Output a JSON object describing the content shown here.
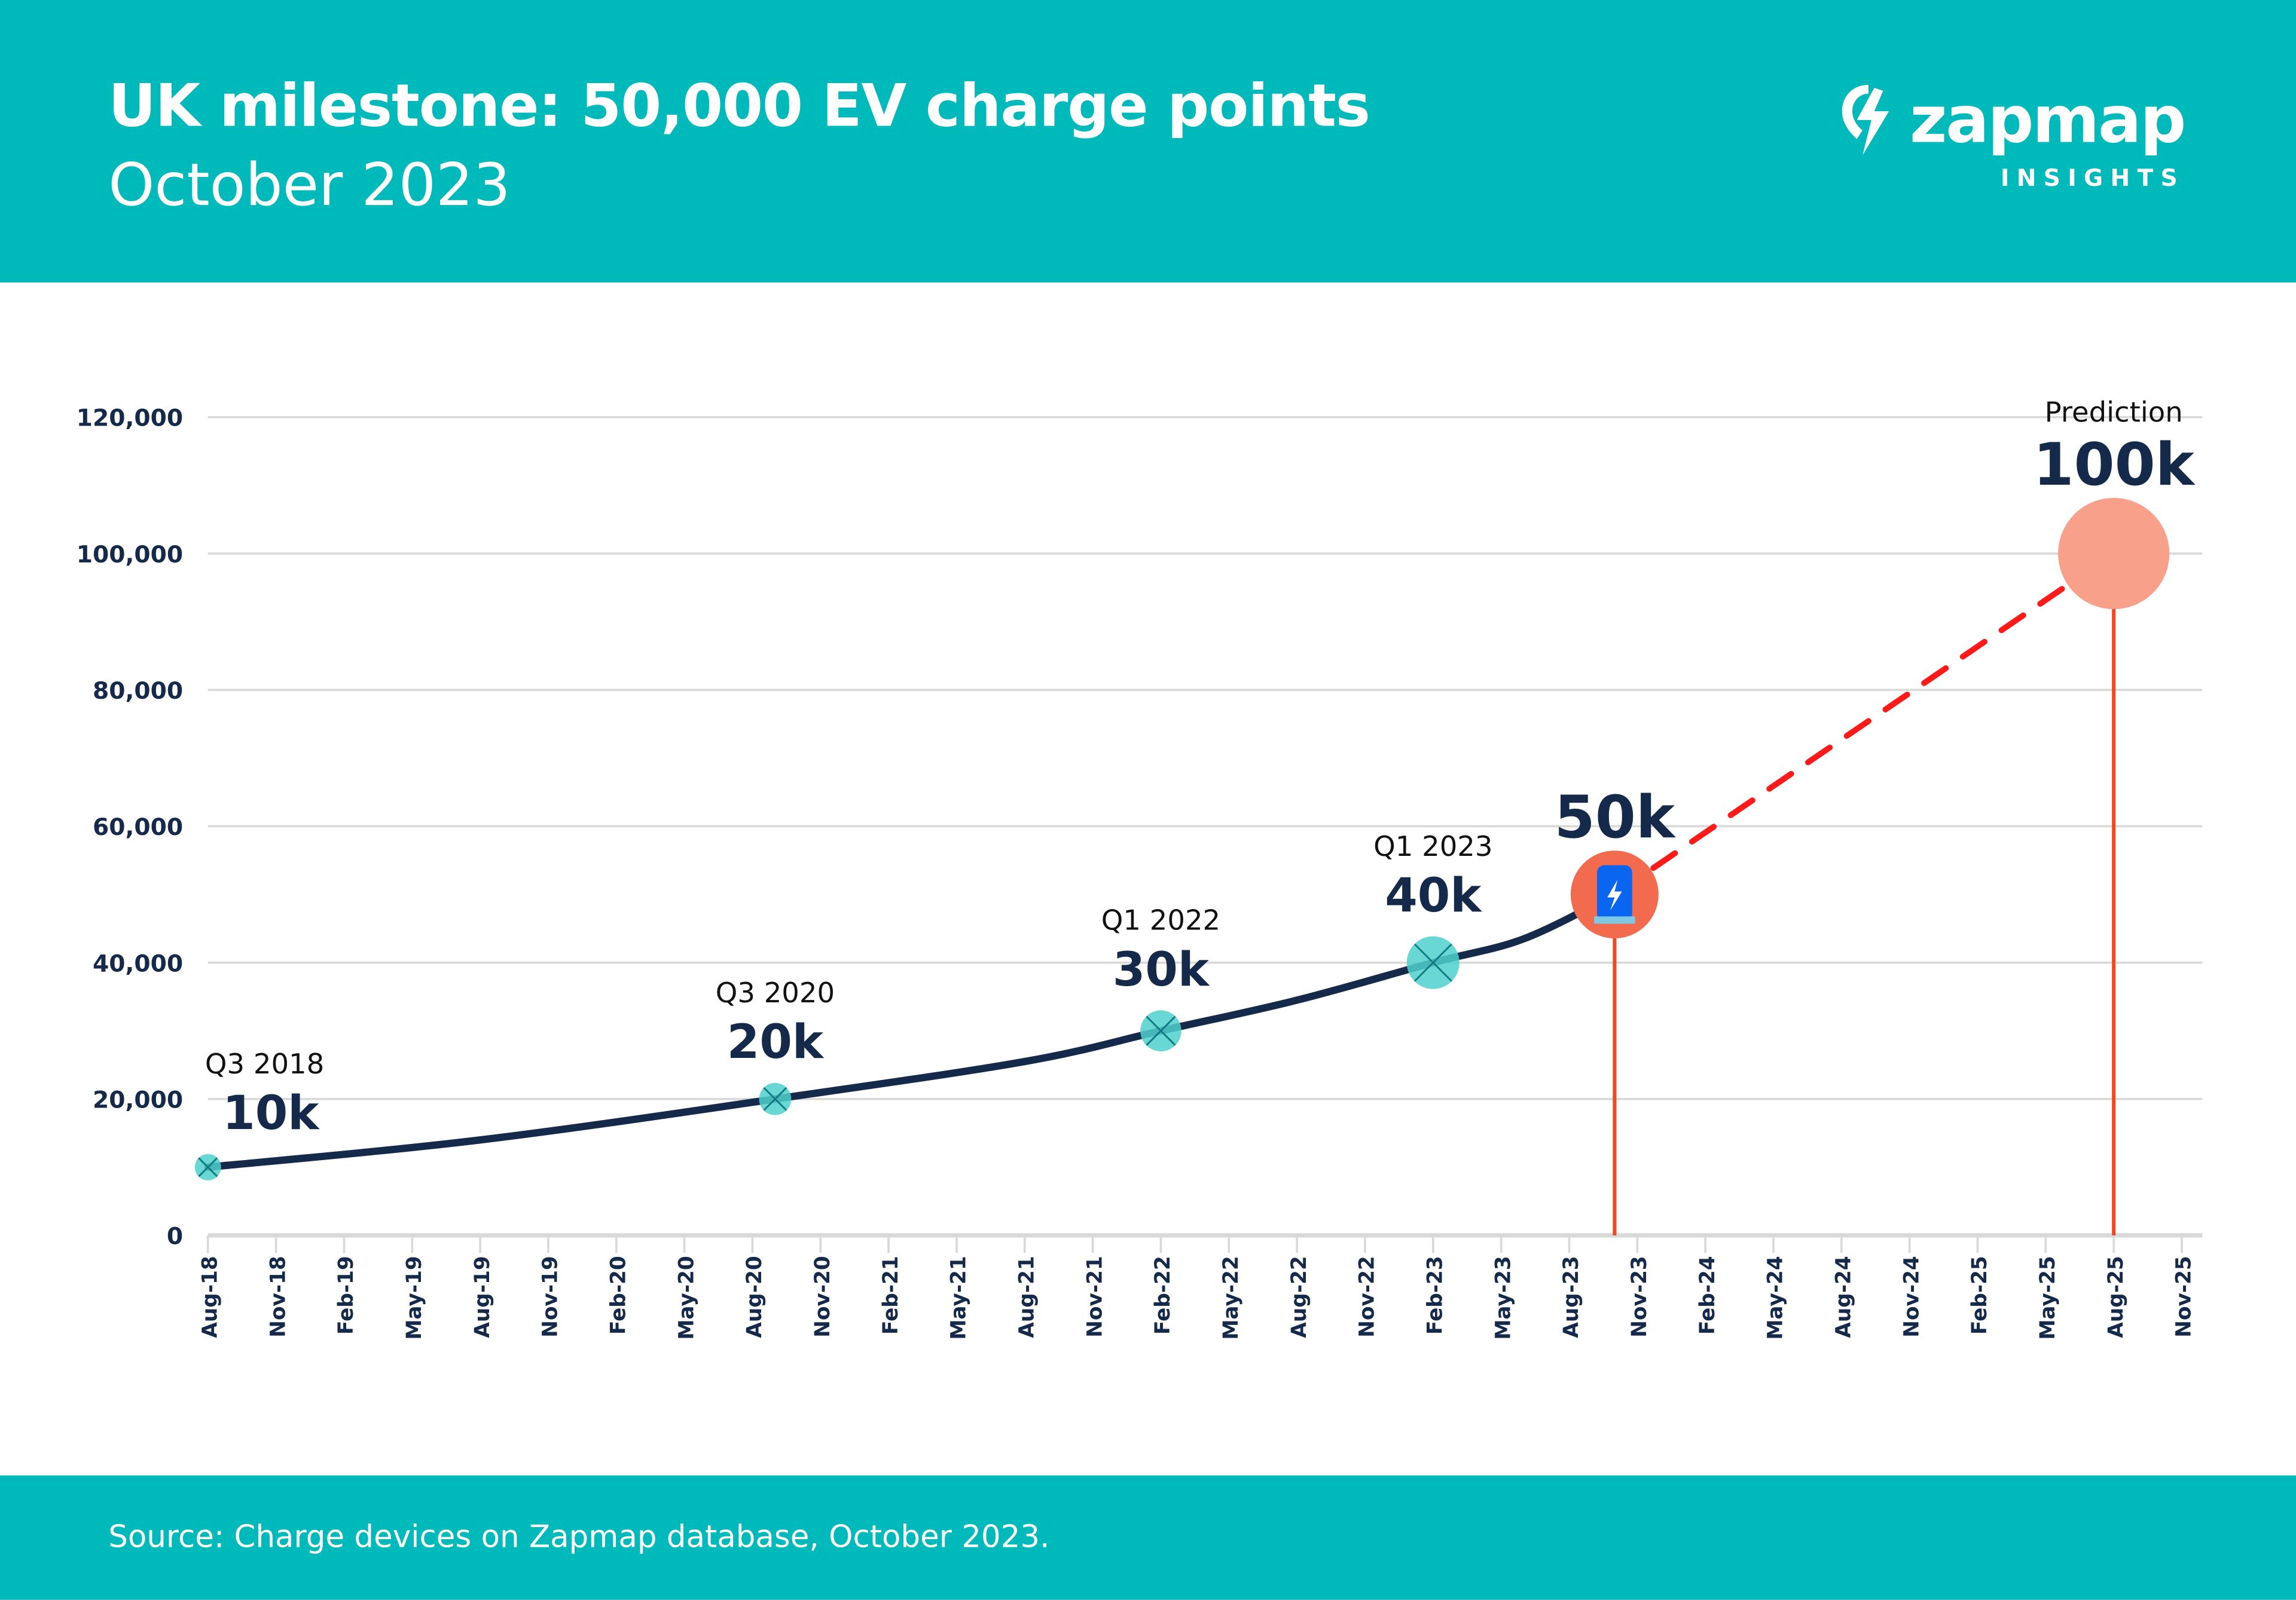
{
  "header": {
    "title": "UK milestone: 50,000 EV charge points",
    "subtitle": "October 2023",
    "logo_text": "zapmap",
    "logo_subtext": "INSIGHTS"
  },
  "footer": {
    "source": "Source: Charge devices on Zapmap database, October 2023."
  },
  "colors": {
    "header_bg": "#00b9bb",
    "line": "#15294b",
    "milestone": "#4fd1cd",
    "current": "#f26b4e",
    "prediction": "#f9a08a",
    "dashed": "#ff1a1a",
    "drop_line": "#f04a24",
    "charger_icon": "#0a66f0"
  },
  "chart_data": {
    "type": "line",
    "ylim": [
      0,
      120000
    ],
    "yticks": [
      0,
      20000,
      40000,
      60000,
      80000,
      100000,
      120000
    ],
    "ytick_labels": [
      "0",
      "20,000",
      "40,000",
      "60,000",
      "80,000",
      "100,000",
      "120,000"
    ],
    "xlim": [
      "2018-08",
      "2025-11"
    ],
    "xtick_labels": [
      "Aug-18",
      "Nov-18",
      "Feb-19",
      "May-19",
      "Aug-19",
      "Nov-19",
      "Feb-20",
      "May-20",
      "Aug-20",
      "Nov-20",
      "Feb-21",
      "May-21",
      "Aug-21",
      "Nov-21",
      "Feb-22",
      "May-22",
      "Aug-22",
      "Nov-22",
      "Feb-23",
      "May-23",
      "Aug-23",
      "Nov-23",
      "Feb-24",
      "May-24",
      "Aug-24",
      "Nov-24",
      "Feb-25",
      "May-25",
      "Aug-25",
      "Nov-25"
    ],
    "grid": true,
    "actual": [
      {
        "x": "2018-08",
        "y": 10000
      },
      {
        "x": "2019-08",
        "y": 14000
      },
      {
        "x": "2020-09",
        "y": 20000
      },
      {
        "x": "2021-08",
        "y": 25500
      },
      {
        "x": "2022-02",
        "y": 30000
      },
      {
        "x": "2022-08",
        "y": 34500
      },
      {
        "x": "2023-02",
        "y": 40000
      },
      {
        "x": "2023-06",
        "y": 43500
      },
      {
        "x": "2023-10",
        "y": 50000
      }
    ],
    "prediction_line": [
      {
        "x": "2023-10",
        "y": 50000
      },
      {
        "x": "2025-08",
        "y": 100000
      }
    ],
    "milestones": [
      {
        "x": "2018-08",
        "y": 10000,
        "period": "Q3 2018",
        "label": "10k",
        "kind": "milestone"
      },
      {
        "x": "2020-09",
        "y": 20000,
        "period": "Q3 2020",
        "label": "20k",
        "kind": "milestone"
      },
      {
        "x": "2022-02",
        "y": 30000,
        "period": "Q1 2022",
        "label": "30k",
        "kind": "milestone"
      },
      {
        "x": "2023-02",
        "y": 40000,
        "period": "Q1 2023",
        "label": "40k",
        "kind": "milestone"
      },
      {
        "x": "2023-10",
        "y": 50000,
        "period": "",
        "label": "50k",
        "kind": "current"
      },
      {
        "x": "2025-08",
        "y": 100000,
        "period": "Prediction",
        "label": "100k",
        "kind": "prediction"
      }
    ]
  }
}
